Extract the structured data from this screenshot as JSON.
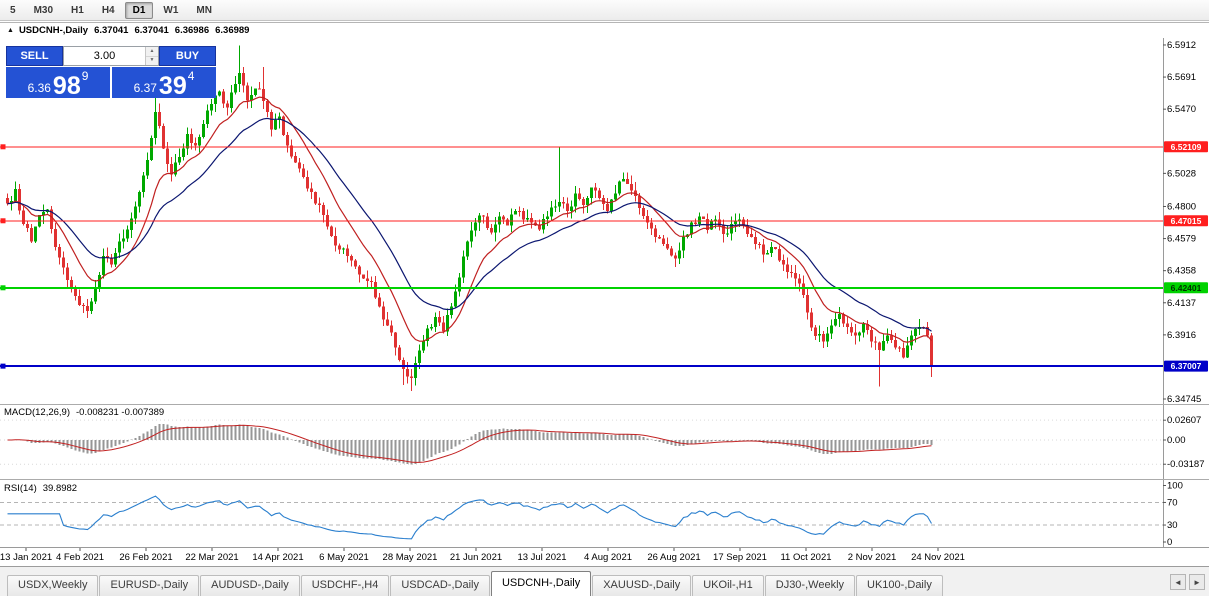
{
  "theme": {
    "trade_blue": "#2452D4",
    "toolbar_bg": "#ececec",
    "tabbar_bg": "#f1f1f1"
  },
  "toolbar": {
    "timeframes": [
      {
        "label": "5",
        "active": false
      },
      {
        "label": "M30",
        "active": false
      },
      {
        "label": "H1",
        "active": false
      },
      {
        "label": "H4",
        "active": false
      },
      {
        "label": "D1",
        "active": true
      },
      {
        "label": "W1",
        "active": false
      },
      {
        "label": "MN",
        "active": false
      }
    ]
  },
  "chart": {
    "title": {
      "collapse_icon": "▲",
      "symbol": "USDCNH-,Daily",
      "open": "6.37041",
      "high": "6.37041",
      "low": "6.36986",
      "close": "6.36989"
    },
    "trade_panel": {
      "sell_label": "SELL",
      "buy_label": "BUY",
      "lot": "3.00",
      "spin_up": "▲",
      "spin_down": "▼",
      "sell_price": {
        "main": "6.36",
        "big": "98",
        "sup": "9"
      },
      "buy_price": {
        "main": "6.37",
        "big": "39",
        "sup": "4"
      }
    }
  },
  "chart_data": {
    "type": "candlestick",
    "symbol": "USDCNH-",
    "timeframe": "Daily",
    "colors": {
      "up": "#00A800",
      "down": "#E03232",
      "background": "#FFFFFF"
    },
    "price_range": {
      "top": 6.596,
      "bottom": 6.344
    },
    "bars": 232,
    "noise_seed": 7,
    "close_jitter": 0.0032,
    "wick_amp": 0.006,
    "close_anchors": [
      [
        0,
        6.482
      ],
      [
        2,
        6.492
      ],
      [
        4,
        6.468
      ],
      [
        6,
        6.456
      ],
      [
        8,
        6.474
      ],
      [
        10,
        6.478
      ],
      [
        12,
        6.452
      ],
      [
        14,
        6.438
      ],
      [
        16,
        6.424
      ],
      [
        18,
        6.412
      ],
      [
        20,
        6.408
      ],
      [
        22,
        6.424
      ],
      [
        24,
        6.446
      ],
      [
        26,
        6.44
      ],
      [
        28,
        6.456
      ],
      [
        30,
        6.464
      ],
      [
        33,
        6.49
      ],
      [
        35,
        6.512
      ],
      [
        37,
        6.545
      ],
      [
        39,
        6.52
      ],
      [
        41,
        6.502
      ],
      [
        43,
        6.514
      ],
      [
        45,
        6.53
      ],
      [
        47,
        6.522
      ],
      [
        50,
        6.546
      ],
      [
        53,
        6.559
      ],
      [
        55,
        6.548
      ],
      [
        58,
        6.572
      ],
      [
        60,
        6.553
      ],
      [
        63,
        6.561
      ],
      [
        66,
        6.533
      ],
      [
        68,
        6.542
      ],
      [
        70,
        6.522
      ],
      [
        73,
        6.506
      ],
      [
        76,
        6.49
      ],
      [
        79,
        6.474
      ],
      [
        82,
        6.453
      ],
      [
        85,
        6.446
      ],
      [
        88,
        6.433
      ],
      [
        91,
        6.428
      ],
      [
        93,
        6.411
      ],
      [
        95,
        6.398
      ],
      [
        97,
        6.383
      ],
      [
        99,
        6.368
      ],
      [
        101,
        6.362
      ],
      [
        103,
        6.381
      ],
      [
        105,
        6.396
      ],
      [
        107,
        6.404
      ],
      [
        109,
        6.394
      ],
      [
        111,
        6.411
      ],
      [
        113,
        6.431
      ],
      [
        115,
        6.456
      ],
      [
        117,
        6.469
      ],
      [
        119,
        6.473
      ],
      [
        121,
        6.462
      ],
      [
        123,
        6.473
      ],
      [
        125,
        6.467
      ],
      [
        127,
        6.477
      ],
      [
        129,
        6.471
      ],
      [
        131,
        6.469
      ],
      [
        133,
        6.464
      ],
      [
        135,
        6.473
      ],
      [
        138,
        6.483
      ],
      [
        140,
        6.477
      ],
      [
        142,
        6.489
      ],
      [
        144,
        6.481
      ],
      [
        146,
        6.493
      ],
      [
        148,
        6.486
      ],
      [
        150,
        6.477
      ],
      [
        152,
        6.489
      ],
      [
        154,
        6.499
      ],
      [
        156,
        6.491
      ],
      [
        158,
        6.479
      ],
      [
        160,
        6.469
      ],
      [
        162,
        6.459
      ],
      [
        165,
        6.451
      ],
      [
        167,
        6.444
      ],
      [
        169,
        6.459
      ],
      [
        171,
        6.469
      ],
      [
        173,
        6.473
      ],
      [
        175,
        6.464
      ],
      [
        177,
        6.471
      ],
      [
        179,
        6.461
      ],
      [
        181,
        6.468
      ],
      [
        183,
        6.471
      ],
      [
        185,
        6.461
      ],
      [
        187,
        6.454
      ],
      [
        189,
        6.447
      ],
      [
        191,
        6.452
      ],
      [
        193,
        6.443
      ],
      [
        195,
        6.435
      ],
      [
        198,
        6.427
      ],
      [
        200,
        6.407
      ],
      [
        202,
        6.391
      ],
      [
        204,
        6.387
      ],
      [
        206,
        6.398
      ],
      [
        208,
        6.406
      ],
      [
        210,
        6.397
      ],
      [
        212,
        6.391
      ],
      [
        214,
        6.399
      ],
      [
        216,
        6.387
      ],
      [
        218,
        6.381
      ],
      [
        220,
        6.391
      ],
      [
        222,
        6.383
      ],
      [
        224,
        6.376
      ],
      [
        226,
        6.391
      ],
      [
        228,
        6.397
      ],
      [
        230,
        6.391
      ],
      [
        231,
        6.37
      ]
    ],
    "wick_overrides": [
      {
        "i": 37,
        "high": 6.557
      },
      {
        "i": 58,
        "high": 6.591
      },
      {
        "i": 64,
        "high": 6.576
      },
      {
        "i": 138,
        "high": 6.5211
      },
      {
        "i": 99,
        "low": 6.357
      },
      {
        "i": 101,
        "low": 6.353
      },
      {
        "i": 218,
        "low": 6.356
      },
      {
        "i": 231,
        "low": 6.3625
      }
    ],
    "last_bar": {
      "open": 6.37041,
      "high": 6.37041,
      "low": 6.36986,
      "close": 6.36989
    },
    "moving_averages": [
      {
        "name": "fast-ma",
        "period": 12,
        "color": "#C02020"
      },
      {
        "name": "slow-ma",
        "period": 26,
        "color": "#0B1670"
      }
    ],
    "hlines": [
      {
        "price": 6.52109,
        "text": "6.52109",
        "color": "#FF1F1F",
        "badge_text_color": "#FFFFFF",
        "width": 1
      },
      {
        "price": 6.47015,
        "text": "6.47015",
        "color": "#FF1F1F",
        "badge_text_color": "#FFFFFF",
        "width": 1
      },
      {
        "price": 6.42401,
        "text": "6.42401",
        "color": "#00D200",
        "badge_text_color": "#003300",
        "width": 2
      },
      {
        "price": 6.37007,
        "text": "6.37007",
        "color": "#0000C8",
        "badge_text_color": "#FFFFFF",
        "width": 2
      }
    ],
    "y_axis_labels": [
      {
        "price": 6.5912,
        "text": "6.5912"
      },
      {
        "price": 6.5691,
        "text": "6.5691"
      },
      {
        "price": 6.547,
        "text": "6.5470"
      },
      {
        "price": 6.5028,
        "text": "6.5028"
      },
      {
        "price": 6.48,
        "text": "6.4800"
      },
      {
        "price": 6.4579,
        "text": "6.4579"
      },
      {
        "price": 6.4358,
        "text": "6.4358"
      },
      {
        "price": 6.4137,
        "text": "6.4137"
      },
      {
        "price": 6.3916,
        "text": "6.3916"
      },
      {
        "price": 6.34745,
        "text": "6.34745"
      }
    ],
    "x_labels": [
      "13 Jan 2021",
      "4 Feb 2021",
      "26 Feb 2021",
      "22 Mar 2021",
      "14 Apr 2021",
      "6 May 2021",
      "28 May 2021",
      "21 Jun 2021",
      "13 Jul 2021",
      "4 Aug 2021",
      "26 Aug 2021",
      "17 Sep 2021",
      "11 Oct 2021",
      "2 Nov 2021",
      "24 Nov 2021"
    ],
    "macd": {
      "label": "MACD(12,26,9)",
      "values_text": "-0.008231 -0.007389",
      "fast": 12,
      "slow": 26,
      "signal": 9,
      "hist_color": "#969696",
      "signal_color": "#C22222",
      "axis_labels": [
        {
          "v": 0.02607,
          "text": "0.02607"
        },
        {
          "v": 0.0,
          "text": "0.00"
        },
        {
          "v": -0.03187,
          "text": "-0.03187"
        }
      ]
    },
    "rsi": {
      "label": "RSI(14)",
      "value_text": "39.8982",
      "period": 14,
      "color": "#2A7FCE",
      "levels": [
        {
          "v": 100,
          "text": "100",
          "line": false
        },
        {
          "v": 70,
          "text": "70",
          "line": true
        },
        {
          "v": 30,
          "text": "30",
          "line": true
        },
        {
          "v": 0,
          "text": "0",
          "line": false
        }
      ]
    }
  },
  "tabs": {
    "items": [
      {
        "label": "USDX,Weekly",
        "active": false
      },
      {
        "label": "EURUSD-,Daily",
        "active": false
      },
      {
        "label": "AUDUSD-,Daily",
        "active": false
      },
      {
        "label": "USDCHF-,H4",
        "active": false
      },
      {
        "label": "USDCAD-,Daily",
        "active": false
      },
      {
        "label": "USDCNH-,Daily",
        "active": true
      },
      {
        "label": "XAUUSD-,Daily",
        "active": false
      },
      {
        "label": "UKOil-,H1",
        "active": false
      },
      {
        "label": "DJ30-,Weekly",
        "active": false
      },
      {
        "label": "UK100-,Daily",
        "active": false
      }
    ],
    "scroll_left": "◄",
    "scroll_right": "►"
  }
}
